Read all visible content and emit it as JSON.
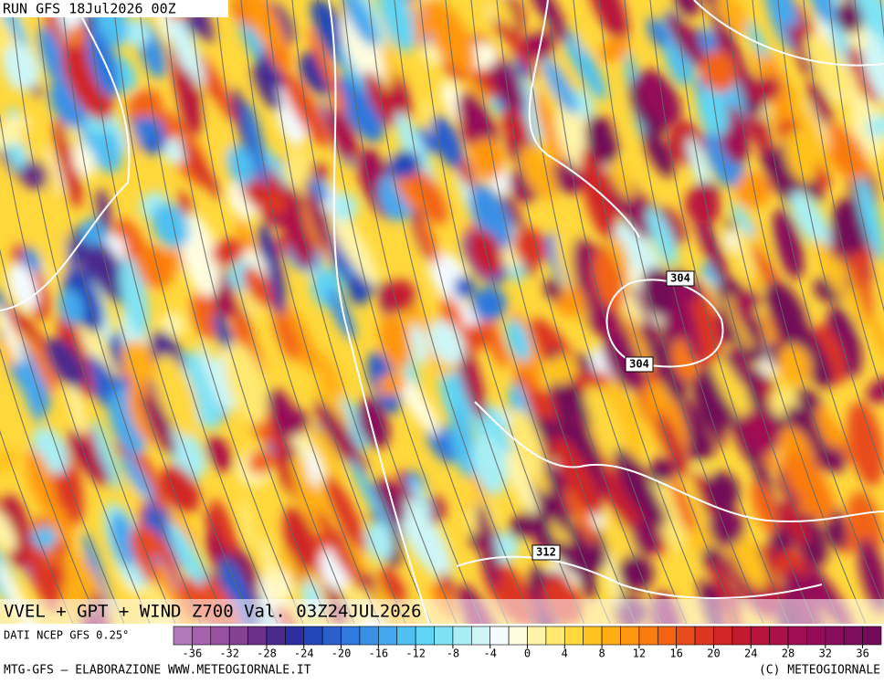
{
  "header": {
    "run": "RUN GFS 18Jul2026 00Z"
  },
  "map": {
    "title": "VVEL + GPT + WIND Z700 Val. 03Z24JUL2026",
    "contour_labels": [
      "304",
      "304",
      "312"
    ]
  },
  "colorbar": {
    "source": "DATI NCEP GFS 0.25°",
    "ticks": [
      -36,
      -32,
      -28,
      -24,
      -20,
      -16,
      -12,
      -8,
      -4,
      0,
      4,
      8,
      12,
      16,
      20,
      24,
      28,
      32,
      36
    ],
    "colors": [
      "#b07ab8",
      "#a463ac",
      "#95519f",
      "#84418f",
      "#6a2f86",
      "#4b2a8e",
      "#2d2fa0",
      "#2346b8",
      "#2a5fcc",
      "#2f78dc",
      "#3b90e6",
      "#44a8ee",
      "#4fc0f2",
      "#5fd4f4",
      "#7fe2f4",
      "#a8eef4",
      "#cff6f6",
      "#f4fbff",
      "#fffde0",
      "#fff4a8",
      "#ffe870",
      "#ffd83c",
      "#ffc21e",
      "#ffae14",
      "#ff9610",
      "#fa7c10",
      "#f26414",
      "#e84c1a",
      "#dc3620",
      "#d02626",
      "#c41a30",
      "#b8143c",
      "#ac1048",
      "#a00e52",
      "#940c58",
      "#8a0c5c",
      "#7e0c5c",
      "#720c58"
    ]
  },
  "footer": {
    "left": "MTG-GFS – ELABORAZIONE WWW.METEOGIORNALE.IT",
    "right": "(C) METEOGIORNALE"
  }
}
